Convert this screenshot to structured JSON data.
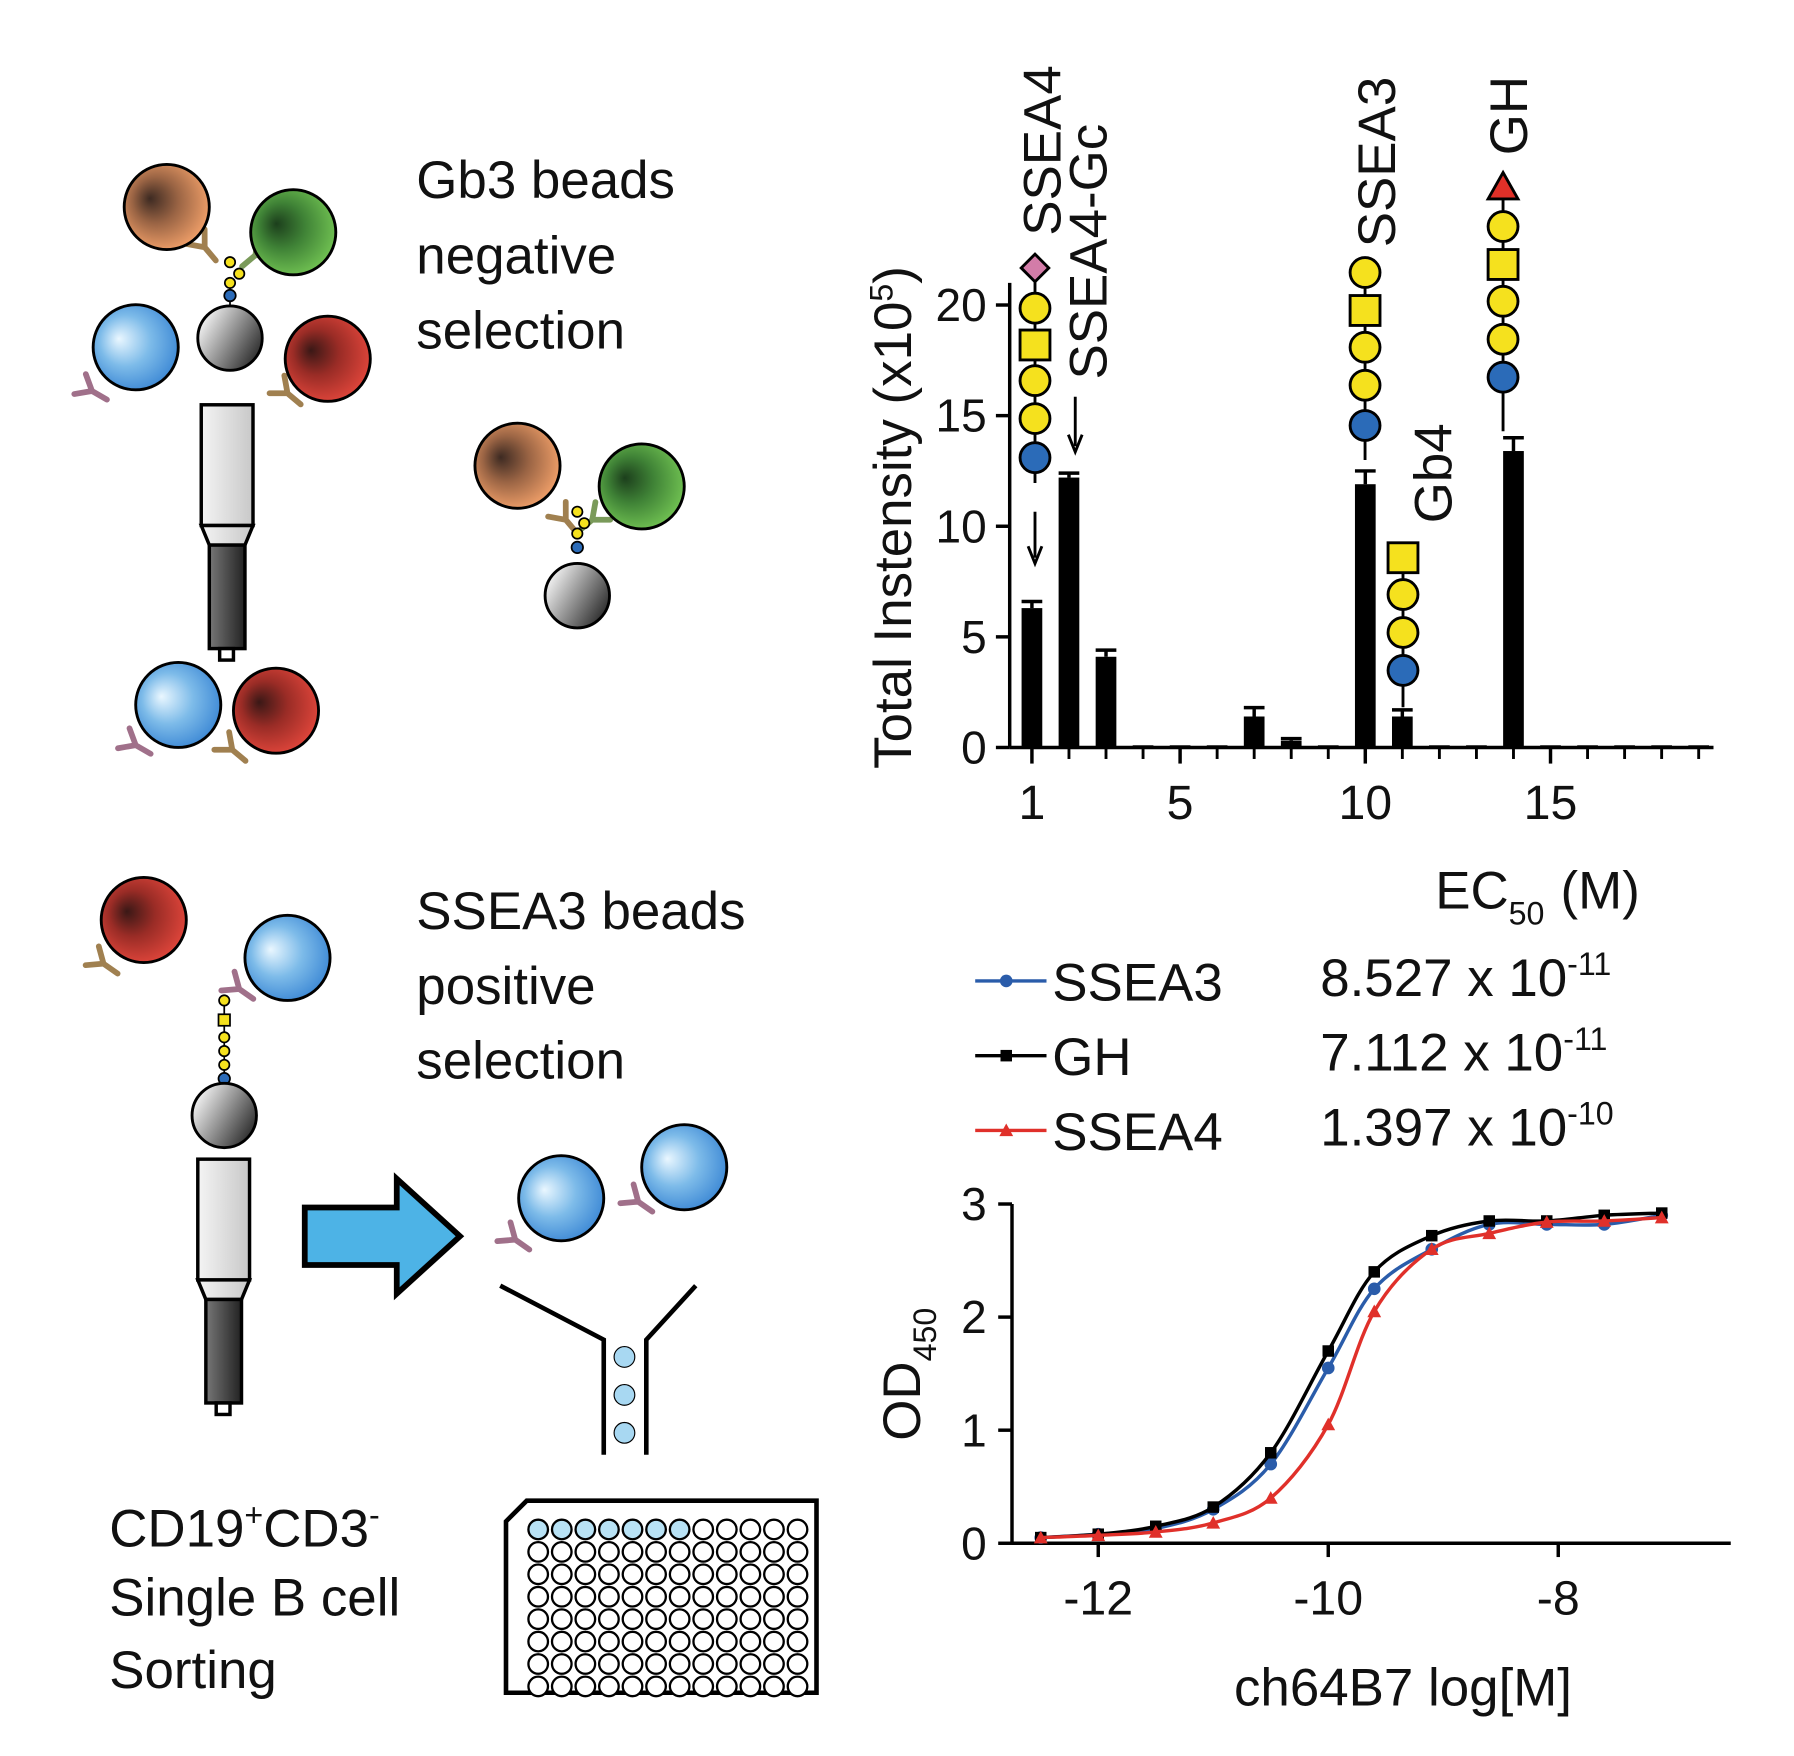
{
  "diagram": {
    "top_text": [
      "Gb3 beads",
      "negative",
      "selection"
    ],
    "bottom_text": [
      "SSEA3 beads",
      "positive",
      "selection"
    ],
    "sorting": {
      "line1": {
        "a": "CD19",
        "sup_a": "+",
        "b": "CD3",
        "sup_b": "-"
      },
      "line2": "Single B cell",
      "line3": "Sorting"
    }
  },
  "chart_data": [
    {
      "type": "bar",
      "ylabel": {
        "text": "Total Instensity (x10",
        "sup": "5",
        "end": ")"
      },
      "annotations": [
        "SSEA4",
        "SSEA4-Gc",
        "SSEA3",
        "Gb4",
        "GH"
      ],
      "x": [
        1,
        2,
        3,
        4,
        5,
        6,
        7,
        8,
        9,
        10,
        11,
        12,
        13,
        14,
        15,
        16,
        17,
        18,
        19
      ],
      "values": [
        6.3,
        12.2,
        4.1,
        0.1,
        0.1,
        0.1,
        1.4,
        0.3,
        0.1,
        11.9,
        1.4,
        0.1,
        0.1,
        13.4,
        0.1,
        0.1,
        0.1,
        0.1,
        0.1
      ],
      "errors": [
        0.3,
        0.2,
        0.3,
        0,
        0,
        0,
        0.4,
        0.1,
        0,
        0.6,
        0.3,
        0,
        0,
        0.6,
        0,
        0,
        0,
        0,
        0
      ],
      "color": "#000000",
      "xlim": [
        0.4,
        19.4
      ],
      "xticks": [
        1,
        5,
        10,
        15
      ],
      "ylim": [
        0,
        21
      ],
      "yticks": [
        0,
        5,
        10,
        15,
        20
      ]
    },
    {
      "type": "line",
      "xlabel": "ch64B7 log[M]",
      "ylabel": {
        "text": "OD",
        "sub": "450"
      },
      "ec50_header": {
        "text": "EC",
        "sub": "50",
        "unit": "(M)"
      },
      "x": [
        -12.5,
        -12.0,
        -11.5,
        -11.0,
        -10.5,
        -10.0,
        -9.6,
        -9.1,
        -8.6,
        -8.1,
        -7.6,
        -7.1
      ],
      "series": [
        {
          "name": "SSEA3",
          "color": "#2a5caa",
          "marker": "circle",
          "ec50": {
            "text": "8.527 x 10",
            "exp": "-11"
          },
          "values": [
            0.05,
            0.08,
            0.13,
            0.3,
            0.7,
            1.55,
            2.25,
            2.6,
            2.82,
            2.82,
            2.82,
            2.9
          ]
        },
        {
          "name": "GH",
          "color": "#000000",
          "marker": "square",
          "ec50": {
            "text": "7.112 x 10",
            "exp": "-11"
          },
          "values": [
            0.05,
            0.08,
            0.15,
            0.32,
            0.8,
            1.7,
            2.4,
            2.72,
            2.85,
            2.85,
            2.9,
            2.92
          ]
        },
        {
          "name": "SSEA4",
          "color": "#e0302a",
          "marker": "triangle",
          "ec50": {
            "text": "1.397 x 10",
            "exp": "-10"
          },
          "values": [
            0.05,
            0.07,
            0.1,
            0.18,
            0.4,
            1.05,
            2.05,
            2.6,
            2.74,
            2.84,
            2.85,
            2.88
          ]
        }
      ],
      "xlim": [
        -12.75,
        -6.5
      ],
      "xticks": [
        -12,
        -10,
        -8
      ],
      "ylim": [
        0,
        3
      ],
      "yticks": [
        0,
        1,
        2,
        3
      ]
    }
  ]
}
